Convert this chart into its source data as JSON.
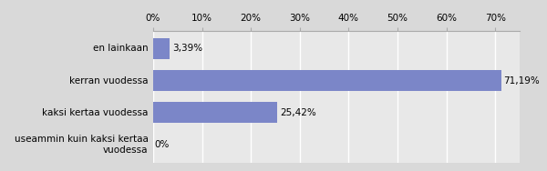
{
  "categories": [
    "useammin kuin kaksi kertaa\nvuodessa",
    "kaksi kertaa vuodessa",
    "kerran vuodessa",
    "en lainkaan"
  ],
  "values": [
    0.0,
    25.42,
    71.19,
    3.39
  ],
  "labels": [
    "0%",
    "25,42%",
    "71,19%",
    "3,39%"
  ],
  "bar_color": "#7b86c8",
  "outer_background": "#d9d9d9",
  "plot_background": "#e8e8e8",
  "xlim": [
    0,
    75
  ],
  "xticks": [
    0,
    10,
    20,
    30,
    40,
    50,
    60,
    70
  ],
  "xtick_labels": [
    "0%",
    "10%",
    "20%",
    "30%",
    "40%",
    "50%",
    "60%",
    "70%"
  ],
  "tick_fontsize": 7.5,
  "label_fontsize": 7.5,
  "category_fontsize": 7.5,
  "bar_height": 0.65
}
